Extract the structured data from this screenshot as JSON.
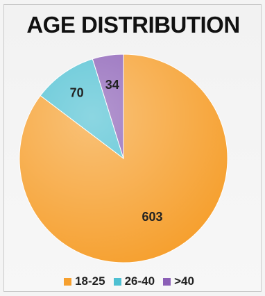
{
  "chart_data": {
    "type": "pie",
    "title": "AGE DISTRIBUTION",
    "categories": [
      "18-25",
      "26-40",
      ">40"
    ],
    "values": [
      603,
      70,
      34
    ],
    "colors": [
      "#f6a02f",
      "#4ec0d2",
      "#8b5fb6"
    ],
    "legend_position": "bottom"
  }
}
